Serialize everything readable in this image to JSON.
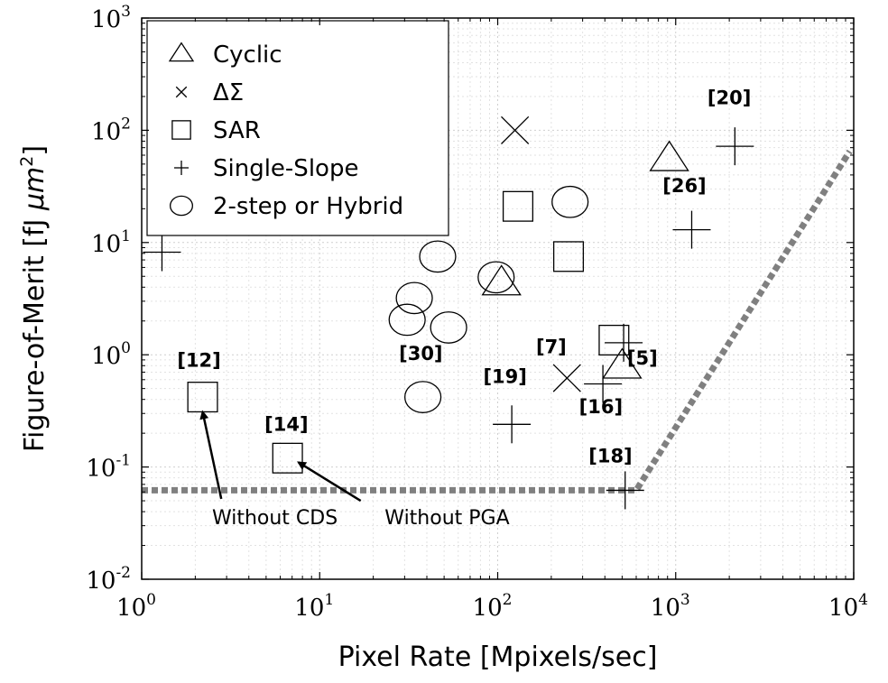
{
  "chart_data": {
    "type": "scatter",
    "xlabel": "Pixel Rate [Mpixels/sec]",
    "ylabel_main": "Figure-of-Merit [fJ ",
    "ylabel_unit": "μm",
    "ylabel_sup": "2",
    "ylabel_close": "]",
    "x_scale": "log",
    "y_scale": "log",
    "xlim": [
      1,
      10000
    ],
    "ylim": [
      0.01,
      1000
    ],
    "x_tick_values": [
      1,
      10,
      100,
      1000,
      10000
    ],
    "y_tick_values": [
      0.01,
      0.1,
      1,
      10,
      100,
      1000
    ],
    "x_ticks": [
      {
        "base": "10",
        "exp": "0"
      },
      {
        "base": "10",
        "exp": "1"
      },
      {
        "base": "10",
        "exp": "2"
      },
      {
        "base": "10",
        "exp": "3"
      },
      {
        "base": "10",
        "exp": "4"
      }
    ],
    "y_ticks": [
      {
        "base": "10",
        "exp": "-2"
      },
      {
        "base": "10",
        "exp": "-1"
      },
      {
        "base": "10",
        "exp": "0"
      },
      {
        "base": "10",
        "exp": "1"
      },
      {
        "base": "10",
        "exp": "2"
      },
      {
        "base": "10",
        "exp": "3"
      }
    ],
    "grid": true,
    "legend_position": "top-left",
    "legend": [
      {
        "marker": "triangle",
        "label": "Cyclic"
      },
      {
        "marker": "x",
        "label": "ΔΣ"
      },
      {
        "marker": "square",
        "label": "SAR"
      },
      {
        "marker": "plus",
        "label": "Single-Slope"
      },
      {
        "marker": "circle",
        "label": "2-step or Hybrid"
      }
    ],
    "series": [
      {
        "marker": "triangle",
        "points": [
          {
            "x": 105,
            "y": 4.3
          },
          {
            "x": 500,
            "y": 0.78
          },
          {
            "x": 920,
            "y": 55
          }
        ]
      },
      {
        "marker": "x",
        "points": [
          {
            "x": 125,
            "y": 100
          },
          {
            "x": 245,
            "y": 0.62
          }
        ]
      },
      {
        "marker": "square",
        "points": [
          {
            "x": 2.2,
            "y": 0.42
          },
          {
            "x": 6.6,
            "y": 0.12
          },
          {
            "x": 130,
            "y": 21
          },
          {
            "x": 250,
            "y": 7.5
          },
          {
            "x": 450,
            "y": 1.35
          }
        ]
      },
      {
        "marker": "plus",
        "points": [
          {
            "x": 1.3,
            "y": 8.2
          },
          {
            "x": 120,
            "y": 0.24
          },
          {
            "x": 390,
            "y": 0.55
          },
          {
            "x": 510,
            "y": 1.28
          },
          {
            "x": 520,
            "y": 0.062
          },
          {
            "x": 1230,
            "y": 13
          },
          {
            "x": 2150,
            "y": 72
          }
        ]
      },
      {
        "marker": "circle",
        "points": [
          {
            "x": 46,
            "y": 7.5
          },
          {
            "x": 98,
            "y": 4.9
          },
          {
            "x": 34,
            "y": 3.2
          },
          {
            "x": 31,
            "y": 2.05
          },
          {
            "x": 53,
            "y": 1.75
          },
          {
            "x": 38,
            "y": 0.42
          },
          {
            "x": 255,
            "y": 23
          }
        ]
      }
    ],
    "reference_labels": [
      {
        "text": "[20]",
        "x": 2000,
        "y": 170
      },
      {
        "text": "[26]",
        "x": 1120,
        "y": 28
      },
      {
        "text": "[12]",
        "x": 2.1,
        "y": 0.78
      },
      {
        "text": "[30]",
        "x": 37,
        "y": 0.9
      },
      {
        "text": "[7]",
        "x": 200,
        "y": 1.03
      },
      {
        "text": "[19]",
        "x": 110,
        "y": 0.56
      },
      {
        "text": "[5]",
        "x": 650,
        "y": 0.82
      },
      {
        "text": "[16]",
        "x": 380,
        "y": 0.3
      },
      {
        "text": "[14]",
        "x": 6.5,
        "y": 0.21
      },
      {
        "text": "[18]",
        "x": 430,
        "y": 0.11
      }
    ],
    "boundary_line": {
      "color": "#808080",
      "points": [
        {
          "x": 1,
          "y": 0.062
        },
        {
          "x": 600,
          "y": 0.062
        },
        {
          "x": 9500,
          "y": 65
        }
      ]
    },
    "annotations": [
      {
        "text": "Without CDS",
        "text_x": 5.6,
        "text_y": 0.031,
        "arrow_from": {
          "x": 2.8,
          "y": 0.052
        },
        "arrow_to": {
          "x": 2.2,
          "y": 0.31
        }
      },
      {
        "text": "Without PGA",
        "text_x": 52,
        "text_y": 0.031,
        "arrow_from": {
          "x": 17,
          "y": 0.05
        },
        "arrow_to": {
          "x": 7.6,
          "y": 0.11
        }
      }
    ]
  }
}
